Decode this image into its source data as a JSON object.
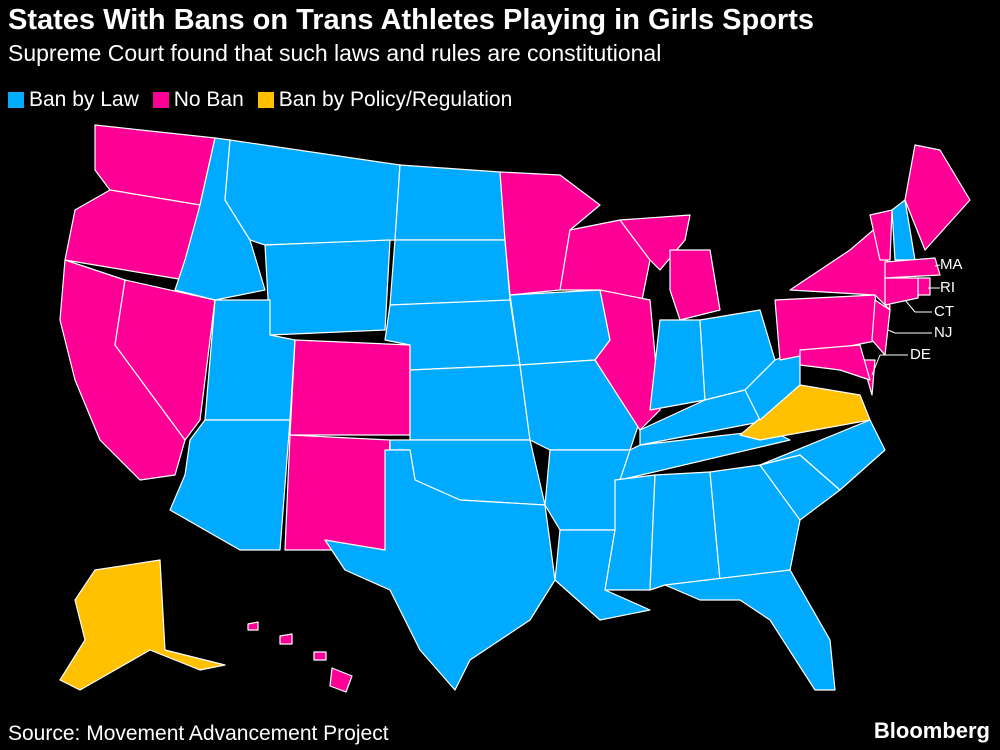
{
  "header": {
    "title": "States With Bans on Trans Athletes Playing in Girls Sports",
    "subtitle": "Supreme Court found that such laws and rules are constitutional"
  },
  "legend": [
    {
      "label": "Ban by Law",
      "color": "#00aaff"
    },
    {
      "label": "No Ban",
      "color": "#ff0096"
    },
    {
      "label": "Ban by Policy/Regulation",
      "color": "#ffc000"
    }
  ],
  "states": {
    "WA": 1,
    "OR": 1,
    "CA": 1,
    "NV": 1,
    "ID": 0,
    "MT": 0,
    "WY": 0,
    "UT": 0,
    "CO": 1,
    "AZ": 0,
    "NM": 1,
    "ND": 0,
    "SD": 0,
    "NE": 0,
    "KS": 0,
    "OK": 0,
    "TX": 0,
    "MN": 1,
    "IA": 0,
    "MO": 0,
    "AR": 0,
    "LA": 0,
    "WI": 1,
    "IL": 1,
    "MI": 1,
    "IN": 0,
    "OH": 0,
    "KY": 0,
    "TN": 0,
    "MS": 0,
    "AL": 0,
    "GA": 0,
    "FL": 0,
    "SC": 0,
    "NC": 0,
    "VA": 2,
    "WV": 0,
    "PA": 1,
    "NY": 1,
    "NJ": 1,
    "DE": 1,
    "MD": 1,
    "VT": 1,
    "NH": 0,
    "ME": 1,
    "MA": 1,
    "RI": 1,
    "CT": 1,
    "AK": 2,
    "HI": 1
  },
  "callouts": [
    "MA",
    "RI",
    "CT",
    "NJ",
    "DE"
  ],
  "footer": {
    "source": "Source: Movement Advancement Project",
    "brand": "Bloomberg"
  }
}
